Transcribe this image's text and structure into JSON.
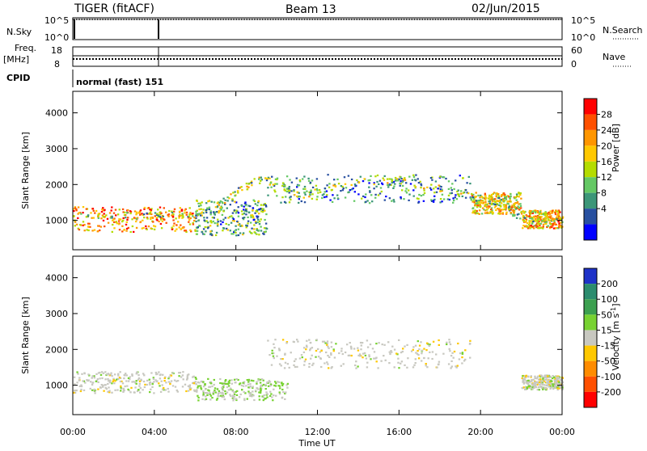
{
  "header": {
    "station": "TIGER (fitACF)",
    "beam": "Beam 13",
    "date": "02/Jun/2015"
  },
  "status_panels": {
    "nsky_label": "N.Sky",
    "nsky_ticks": [
      "10^5",
      "10^0"
    ],
    "nsearch_label": "N.Search",
    "nsearch_ticks": [
      "10^5",
      "10^0"
    ],
    "freq_label": "Freq.",
    "freq_unit": "[MHz]",
    "freq_ticks": [
      "18",
      "8"
    ],
    "nave_label": "Nave",
    "nave_ticks": [
      "60",
      "0"
    ],
    "cpid_label": "CPID",
    "cpid_value": "normal (fast) 151"
  },
  "axes": {
    "y_label": "Slant Range [km]",
    "y_ticks": [
      "4000",
      "3000",
      "2000",
      "1000"
    ],
    "x_label": "Time UT",
    "x_ticks": [
      "00:00",
      "04:00",
      "08:00",
      "12:00",
      "16:00",
      "20:00",
      "00:00"
    ]
  },
  "colorbars": {
    "power_label": "Power [dB]",
    "power_ticks": [
      "28",
      "24",
      "20",
      "16",
      "12",
      "8",
      "4"
    ],
    "power_colors": [
      "#ff0000",
      "#ff5000",
      "#ff9600",
      "#ffc800",
      "#b4dc00",
      "#64c864",
      "#3c9678",
      "#2850a0",
      "#0000ff"
    ],
    "velocity_label_main": "Velocity [m s",
    "velocity_label_sup": "-1",
    "velocity_label_end": "]",
    "velocity_ticks": [
      "200",
      "100",
      "50",
      "15",
      "-15",
      "-50",
      "-100",
      "-200"
    ],
    "velocity_colors": [
      "#1e32c8",
      "#2c8c6e",
      "#3ca050",
      "#78d232",
      "#c8c8c0",
      "#ffc800",
      "#ff8c00",
      "#ff5000",
      "#ff0000"
    ]
  },
  "chart_data": {
    "type": "heatmap",
    "title": "TIGER (fitACF)",
    "subtitle": "Beam 13",
    "date": "02/Jun/2015",
    "xlabel": "Time UT",
    "ylabel": "Slant Range [km]",
    "xlim": [
      0,
      24
    ],
    "ylim": [
      180,
      4600
    ],
    "panels": [
      {
        "name": "Power [dB]",
        "scale": [
          4,
          28
        ],
        "bands": [
          {
            "t": [
              0,
              6.0
            ],
            "range": [
              700,
              1400
            ],
            "value": 22
          },
          {
            "t": [
              6.0,
              9.5
            ],
            "range": [
              600,
              1600
            ],
            "value": 12
          },
          {
            "t": [
              9.5,
              19.5
            ],
            "range": [
              1500,
              2300
            ],
            "value": 10
          },
          {
            "t": [
              19.5,
              22.0
            ],
            "range": [
              1200,
              1800
            ],
            "value": 18
          },
          {
            "t": [
              22.0,
              24
            ],
            "range": [
              800,
              1300
            ],
            "value": 20
          }
        ],
        "arc_km": [
          [
            0,
            1100
          ],
          [
            2,
            1150
          ],
          [
            4,
            1150
          ],
          [
            6,
            1200
          ],
          [
            7,
            1400
          ],
          [
            8,
            1800
          ],
          [
            9,
            2150
          ],
          [
            10,
            2100
          ],
          [
            11,
            1700
          ],
          [
            12,
            1850
          ],
          [
            14,
            2100
          ],
          [
            16,
            2150
          ],
          [
            18,
            1900
          ],
          [
            20,
            1600
          ],
          [
            21,
            1550
          ],
          [
            22,
            1000
          ],
          [
            24,
            1000
          ]
        ]
      },
      {
        "name": "Velocity [m s-1]",
        "scale": [
          -200,
          200
        ],
        "bands": [
          {
            "t": [
              0,
              6.0
            ],
            "range": [
              800,
              1400
            ],
            "value": 0
          },
          {
            "t": [
              6.0,
              10.5
            ],
            "range": [
              600,
              1200
            ],
            "value": 15
          },
          {
            "t": [
              9.5,
              19.5
            ],
            "range": [
              1500,
              2300
            ],
            "value": 0
          },
          {
            "t": [
              22.0,
              24
            ],
            "range": [
              900,
              1300
            ],
            "value": 0
          }
        ]
      }
    ]
  }
}
